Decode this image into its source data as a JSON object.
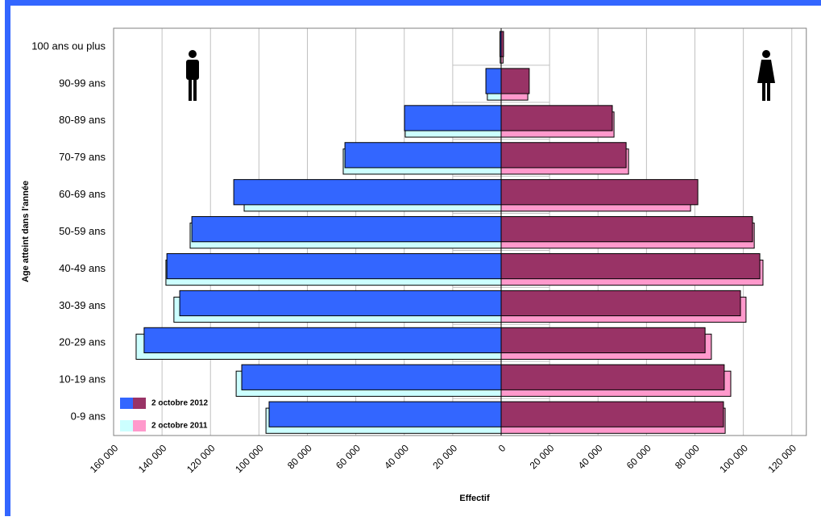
{
  "chart_data": {
    "type": "pyramid",
    "y_label": "Age atteint dans l'année",
    "x_label": "Effectif",
    "categories": [
      "100 ans ou plus",
      "90-99 ans",
      "80-89 ans",
      "70-79 ans",
      "60-69 ans",
      "50-59 ans",
      "40-49 ans",
      "30-39 ans",
      "20-29 ans",
      "10-19 ans",
      "0-9 ans"
    ],
    "years": [
      {
        "name": "2 octobre 2012",
        "male": {
          "color": "#3366ff",
          "values": [
            500,
            6300,
            39900,
            64500,
            110400,
            127700,
            138000,
            132700,
            147400,
            107100,
            95800
          ]
        },
        "female": {
          "color": "#993366",
          "values": [
            1000,
            11600,
            45900,
            51600,
            81200,
            103800,
            106800,
            98800,
            84200,
            92100,
            91800
          ]
        }
      },
      {
        "name": "2 octobre 2011",
        "male": {
          "color": "#ccffff",
          "values": [
            400,
            5700,
            39600,
            65200,
            106100,
            128400,
            138400,
            135100,
            150700,
            109400,
            97100
          ]
        },
        "female": {
          "color": "#ff99cc",
          "values": [
            800,
            11000,
            46600,
            52600,
            78200,
            104500,
            108100,
            101100,
            86800,
            94800,
            92500
          ]
        }
      }
    ],
    "xlim_left": [
      0,
      160000
    ],
    "xlim_right": [
      0,
      126000
    ],
    "xticks_left": [
      {
        "value": 20000,
        "label": "20 000"
      },
      {
        "value": 40000,
        "label": "40 000"
      },
      {
        "value": 60000,
        "label": "60 000"
      },
      {
        "value": 80000,
        "label": "80 000"
      },
      {
        "value": 100000,
        "label": "100 000"
      },
      {
        "value": 120000,
        "label": "120 000"
      },
      {
        "value": 140000,
        "label": "140 000"
      },
      {
        "value": 160000,
        "label": "160 000"
      }
    ],
    "xticks_right": [
      0,
      {
        "value": 20000,
        "label": "20 000"
      },
      {
        "value": 40000,
        "label": "40 000"
      },
      {
        "value": 60000,
        "label": "60 000"
      },
      {
        "value": 80000,
        "label": "80 000"
      },
      {
        "value": 100000,
        "label": "100 000"
      },
      {
        "value": 120000,
        "label": "120 000"
      }
    ],
    "left_tick_color": "#ff0000",
    "grid": true
  }
}
